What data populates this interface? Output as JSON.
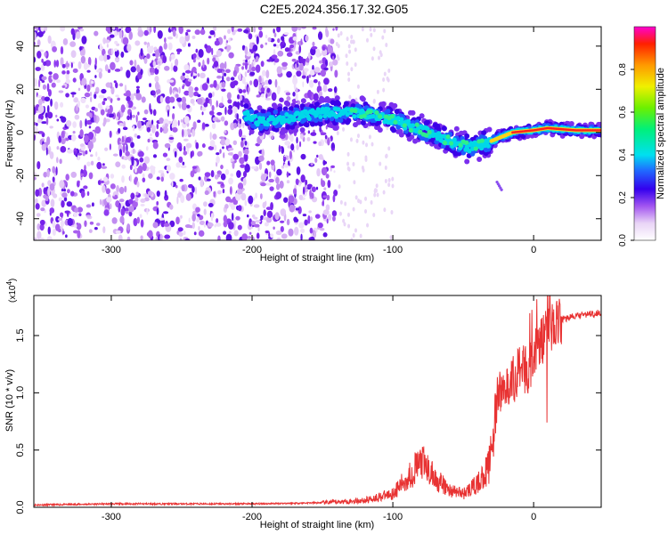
{
  "title": "C2E5.2024.356.17.32.G05",
  "chart_data": [
    {
      "type": "heatmap",
      "xlabel": "Height of straight line (km)",
      "ylabel": "Frequency (Hz)",
      "xlim": [
        -355,
        48
      ],
      "ylim": [
        -50,
        49
      ],
      "xticks": [
        -300,
        -200,
        -100,
        0
      ],
      "yticks": [
        -40,
        -20,
        0,
        20,
        40
      ],
      "colorbar": {
        "label": "Normalized spectral amplitude",
        "range": [
          0,
          1
        ],
        "ticks": [
          "0.0",
          "0.2",
          "0.4",
          "0.6",
          "0.8"
        ]
      },
      "trace_centerline": [
        {
          "x": -205,
          "y": 8
        },
        {
          "x": -195,
          "y": 5
        },
        {
          "x": -150,
          "y": 9
        },
        {
          "x": -120,
          "y": 9
        },
        {
          "x": -100,
          "y": 6
        },
        {
          "x": -80,
          "y": 1
        },
        {
          "x": -60,
          "y": -4
        },
        {
          "x": -45,
          "y": -7
        },
        {
          "x": -30,
          "y": -4
        },
        {
          "x": -15,
          "y": 0
        },
        {
          "x": 0,
          "y": 1
        },
        {
          "x": 10,
          "y": 2
        },
        {
          "x": 30,
          "y": 1
        },
        {
          "x": 48,
          "y": 1
        }
      ],
      "noise_region_xmax": -140
    },
    {
      "type": "line",
      "xlabel": "Height of straight line (km)",
      "ylabel": "SNR (10 * v/v)",
      "y_scale_label": "(x10",
      "y_scale_exp": "4",
      "xlim": [
        -355,
        48
      ],
      "ylim": [
        0,
        1.85
      ],
      "xticks": [
        -300,
        -200,
        -100,
        0
      ],
      "yticks": [
        "0.0",
        "0.5",
        "1.0",
        "1.5"
      ],
      "color": "#e83232",
      "series": [
        {
          "x": [
            -355,
            -300,
            -250,
            -200,
            -150,
            -120,
            -100,
            -90,
            -80,
            -70,
            -60,
            -50,
            -40,
            -32,
            -28,
            -25,
            -20,
            -15,
            -10,
            -5,
            0,
            5,
            10,
            15,
            20,
            30,
            40,
            48
          ],
          "y": [
            0.02,
            0.03,
            0.03,
            0.03,
            0.04,
            0.06,
            0.12,
            0.25,
            0.4,
            0.25,
            0.15,
            0.12,
            0.2,
            0.35,
            0.7,
            1.0,
            1.05,
            1.1,
            1.2,
            1.2,
            1.3,
            1.45,
            1.55,
            1.6,
            1.64,
            1.67,
            1.69,
            1.7
          ]
        }
      ]
    }
  ]
}
